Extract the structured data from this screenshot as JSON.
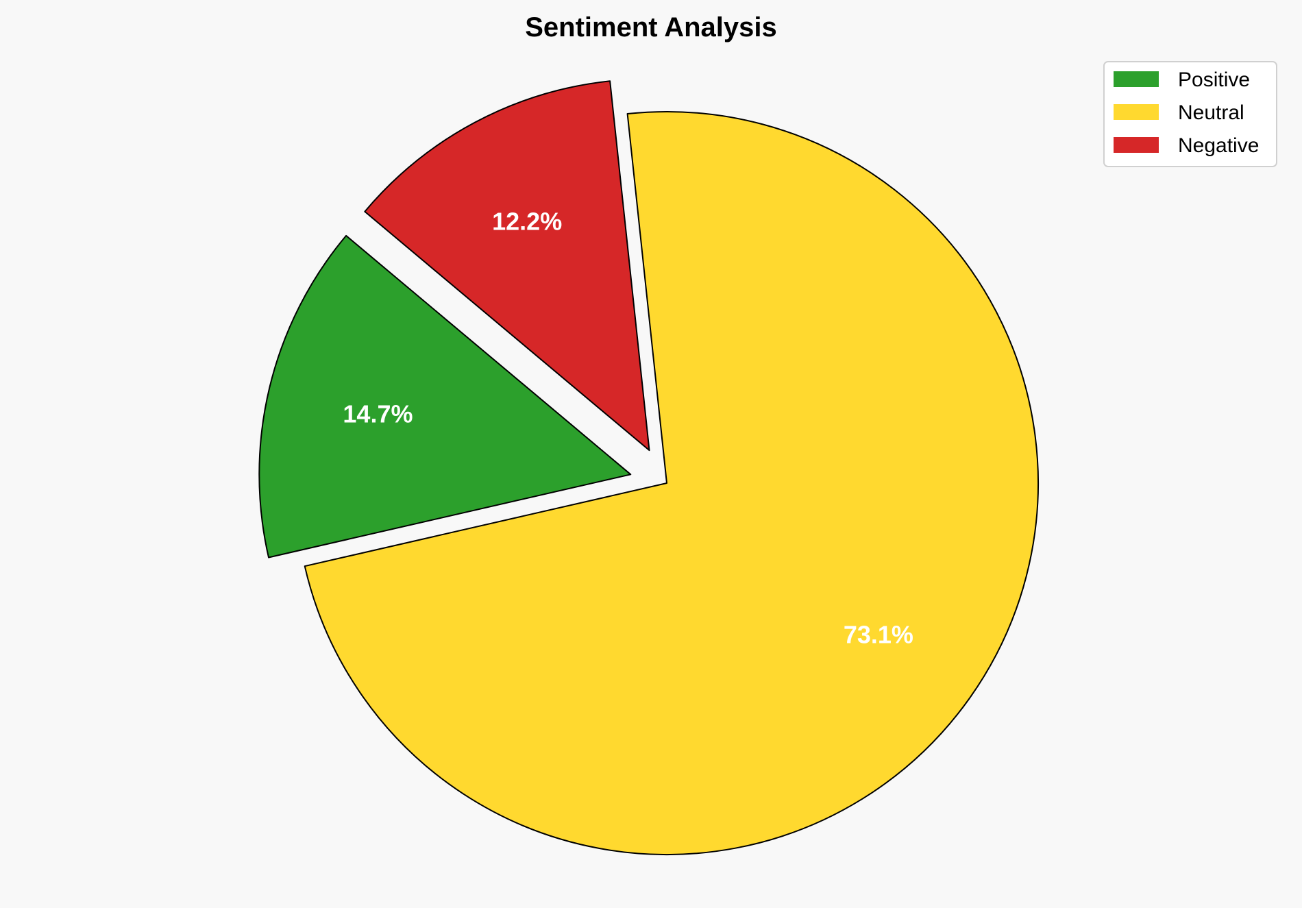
{
  "chart_data": {
    "type": "pie",
    "title": "Sentiment Analysis",
    "categories": [
      "Positive",
      "Neutral",
      "Negative"
    ],
    "values": [
      14.7,
      73.1,
      12.2
    ],
    "labels": [
      "14.7%",
      "73.1%",
      "12.2%"
    ],
    "colors": [
      "#2ca02c",
      "#ffd92f",
      "#d62728"
    ],
    "explode": [
      0.1,
      0,
      0.1
    ],
    "start_angle_deg": 140,
    "direction": "counterclockwise",
    "legend_placement": "top-right"
  }
}
